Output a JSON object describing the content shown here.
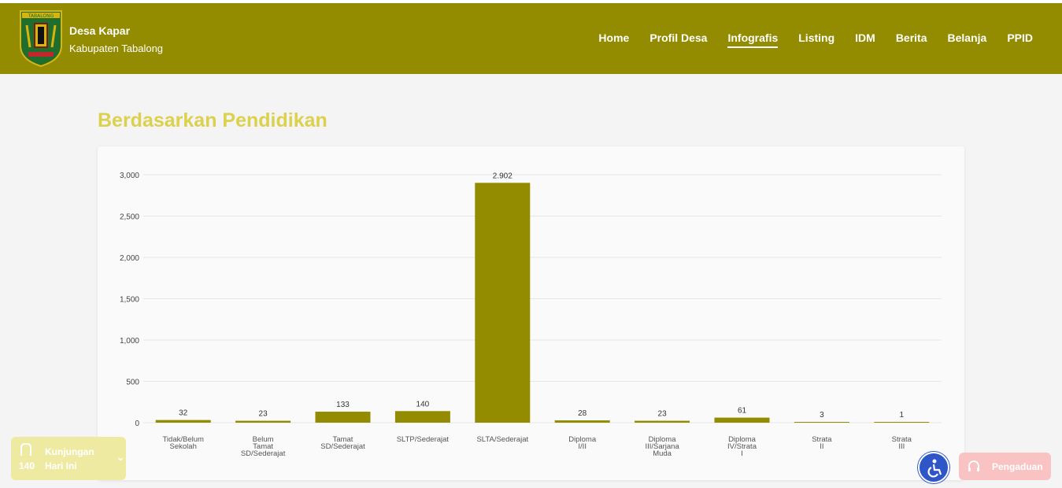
{
  "header": {
    "brand_title": "Desa Kapar",
    "brand_subtitle": "Kabupaten Tabalong",
    "logo_text": "TABALONG",
    "nav": [
      {
        "label": "Home",
        "active": false
      },
      {
        "label": "Profil Desa",
        "active": false
      },
      {
        "label": "Infografis",
        "active": true
      },
      {
        "label": "Listing",
        "active": false
      },
      {
        "label": "IDM",
        "active": false
      },
      {
        "label": "Berita",
        "active": false
      },
      {
        "label": "Belanja",
        "active": false
      },
      {
        "label": "PPID",
        "active": false
      }
    ],
    "bg_color": "#938b00"
  },
  "section": {
    "title": "Berdasarkan Pendidikan",
    "title_color": "#dcd14d"
  },
  "chart_data": {
    "type": "bar",
    "categories": [
      [
        "Tidak/Belum",
        "Sekolah"
      ],
      [
        "Belum",
        "Tamat",
        "SD/Sederajat"
      ],
      [
        "Tamat",
        "SD/Sederajat"
      ],
      [
        "SLTP/Sederajat"
      ],
      [
        "SLTA/Sederajat"
      ],
      [
        "Diploma",
        "I/II"
      ],
      [
        "Diploma",
        "III/Sarjana",
        "Muda"
      ],
      [
        "Diploma",
        "IV/Strata",
        "I"
      ],
      [
        "Strata",
        "II"
      ],
      [
        "Strata",
        "III"
      ]
    ],
    "values": [
      32,
      23,
      133,
      140,
      2902,
      28,
      23,
      61,
      3,
      1
    ],
    "value_labels": [
      "32",
      "23",
      "133",
      "140",
      "2.902",
      "28",
      "23",
      "61",
      "3",
      "1"
    ],
    "yticks": [
      "0",
      "500",
      "1,000",
      "1,500",
      "2,000",
      "2,500",
      "3,000"
    ],
    "ytick_values": [
      0,
      500,
      1000,
      1500,
      2000,
      2500,
      3000
    ],
    "ylim": [
      0,
      3000
    ],
    "grid": true,
    "bar_color": "#938b00"
  },
  "widgets": {
    "visits_count": "140",
    "visits_label_1": "Kunjungan",
    "visits_label_2": "Hari Ini",
    "complaint_label": "Pengaduan"
  }
}
